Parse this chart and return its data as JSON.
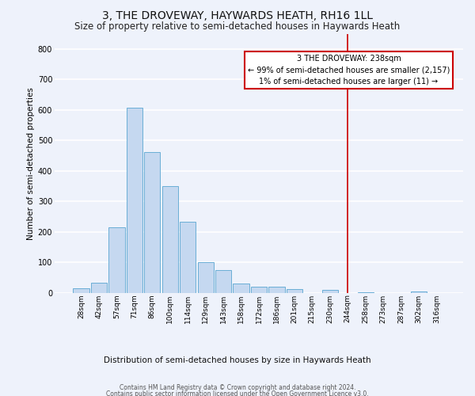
{
  "title": "3, THE DROVEWAY, HAYWARDS HEATH, RH16 1LL",
  "subtitle": "Size of property relative to semi-detached houses in Haywards Heath",
  "xlabel": "Distribution of semi-detached houses by size in Haywards Heath",
  "ylabel": "Number of semi-detached properties",
  "bar_labels": [
    "28sqm",
    "42sqm",
    "57sqm",
    "71sqm",
    "86sqm",
    "100sqm",
    "114sqm",
    "129sqm",
    "143sqm",
    "158sqm",
    "172sqm",
    "186sqm",
    "201sqm",
    "215sqm",
    "230sqm",
    "244sqm",
    "258sqm",
    "273sqm",
    "287sqm",
    "302sqm",
    "316sqm"
  ],
  "bar_values": [
    15,
    35,
    215,
    608,
    462,
    350,
    233,
    102,
    76,
    32,
    22,
    22,
    12,
    0,
    10,
    0,
    3,
    0,
    0,
    4,
    0
  ],
  "bar_color": "#c5d8f0",
  "bar_edge_color": "#6aaed6",
  "vline_x": 15.0,
  "vline_color": "#cc0000",
  "annotation_title": "3 THE DROVEWAY: 238sqm",
  "annotation_line1": "← 99% of semi-detached houses are smaller (2,157)",
  "annotation_line2": "1% of semi-detached houses are larger (11) →",
  "annotation_box_color": "#ffffff",
  "annotation_box_edge": "#cc0000",
  "ylim": [
    0,
    850
  ],
  "yticks": [
    0,
    100,
    200,
    300,
    400,
    500,
    600,
    700,
    800
  ],
  "footer_line1": "Contains HM Land Registry data © Crown copyright and database right 2024.",
  "footer_line2": "Contains public sector information licensed under the Open Government Licence v3.0.",
  "bg_color": "#eef2fb",
  "title_fontsize": 10,
  "subtitle_fontsize": 8.5,
  "ylabel_fontsize": 7.5,
  "tick_fontsize": 6.5,
  "annotation_fontsize": 7,
  "xlabel_fontsize": 7.5,
  "footer_fontsize": 5.5
}
